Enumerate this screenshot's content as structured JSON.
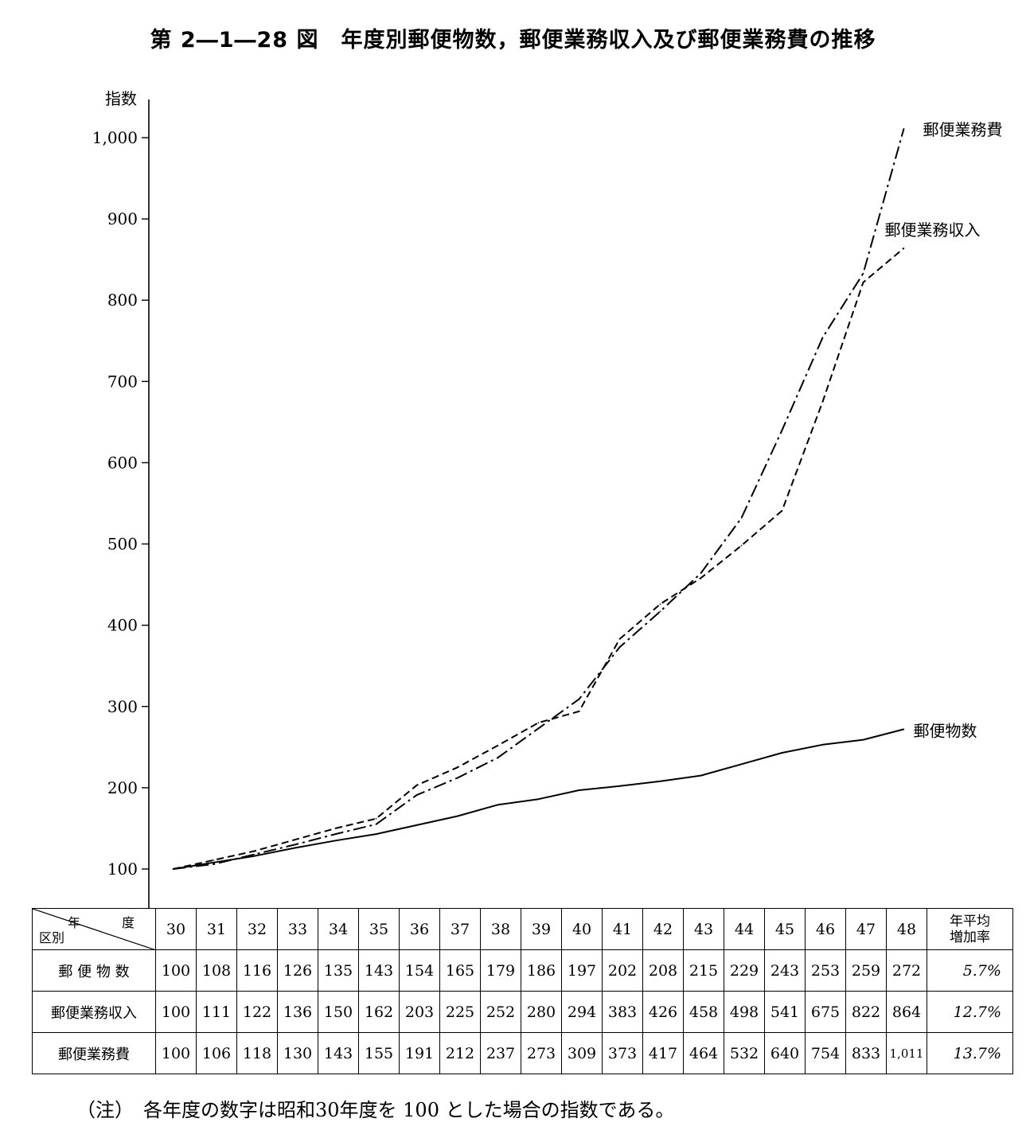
{
  "chart_data": {
    "type": "line",
    "title": "第 2―1―28 図　年度別郵便物数，郵便業務収入及び郵便業務費の推移",
    "ylabel": "指数",
    "ylim": [
      100,
      1000
    ],
    "yticks": [
      100,
      200,
      300,
      400,
      500,
      600,
      700,
      800,
      900,
      1000
    ],
    "ytick_labels": [
      "100",
      "200",
      "300",
      "400",
      "500",
      "600",
      "700",
      "800",
      "900",
      "1,000"
    ],
    "categories": [
      "30",
      "31",
      "32",
      "33",
      "34",
      "35",
      "36",
      "37",
      "38",
      "39",
      "40",
      "41",
      "42",
      "43",
      "44",
      "45",
      "46",
      "47",
      "48"
    ],
    "grid": false,
    "legend": "inline labels at line ends",
    "series": [
      {
        "name": "郵便物数",
        "style": "solid",
        "values": [
          100,
          108,
          116,
          126,
          135,
          143,
          154,
          165,
          179,
          186,
          197,
          202,
          208,
          215,
          229,
          243,
          253,
          259,
          272
        ]
      },
      {
        "name": "郵便業務収入",
        "style": "dashed",
        "values": [
          100,
          111,
          122,
          136,
          150,
          162,
          203,
          225,
          252,
          280,
          294,
          383,
          426,
          458,
          498,
          541,
          675,
          822,
          864
        ]
      },
      {
        "name": "郵便業務費",
        "style": "dashdot",
        "values": [
          100,
          106,
          118,
          130,
          143,
          155,
          191,
          212,
          237,
          273,
          309,
          373,
          417,
          464,
          532,
          640,
          754,
          833,
          1011
        ]
      }
    ]
  },
  "table": {
    "header_year": "年　度",
    "header_category": "区別",
    "header_rate": [
      "年平均",
      "増加率"
    ],
    "years": [
      "30",
      "31",
      "32",
      "33",
      "34",
      "35",
      "36",
      "37",
      "38",
      "39",
      "40",
      "41",
      "42",
      "43",
      "44",
      "45",
      "46",
      "47",
      "48"
    ],
    "rows": [
      {
        "label": "郵 便 物 数",
        "values": [
          "100",
          "108",
          "116",
          "126",
          "135",
          "143",
          "154",
          "165",
          "179",
          "186",
          "197",
          "202",
          "208",
          "215",
          "229",
          "243",
          "253",
          "259",
          "272"
        ],
        "rate": "5.7%"
      },
      {
        "label": "郵便業務収入",
        "values": [
          "100",
          "111",
          "122",
          "136",
          "150",
          "162",
          "203",
          "225",
          "252",
          "280",
          "294",
          "383",
          "426",
          "458",
          "498",
          "541",
          "675",
          "822",
          "864"
        ],
        "rate": "12.7%"
      },
      {
        "label": "郵便業務費",
        "values": [
          "100",
          "106",
          "118",
          "130",
          "143",
          "155",
          "191",
          "212",
          "237",
          "273",
          "309",
          "373",
          "417",
          "464",
          "532",
          "640",
          "754",
          "833",
          "1,011"
        ],
        "rate": "13.7%"
      }
    ]
  },
  "note": "（注）　各年度の数字は昭和30年度を 100 とした場合の指数である。"
}
